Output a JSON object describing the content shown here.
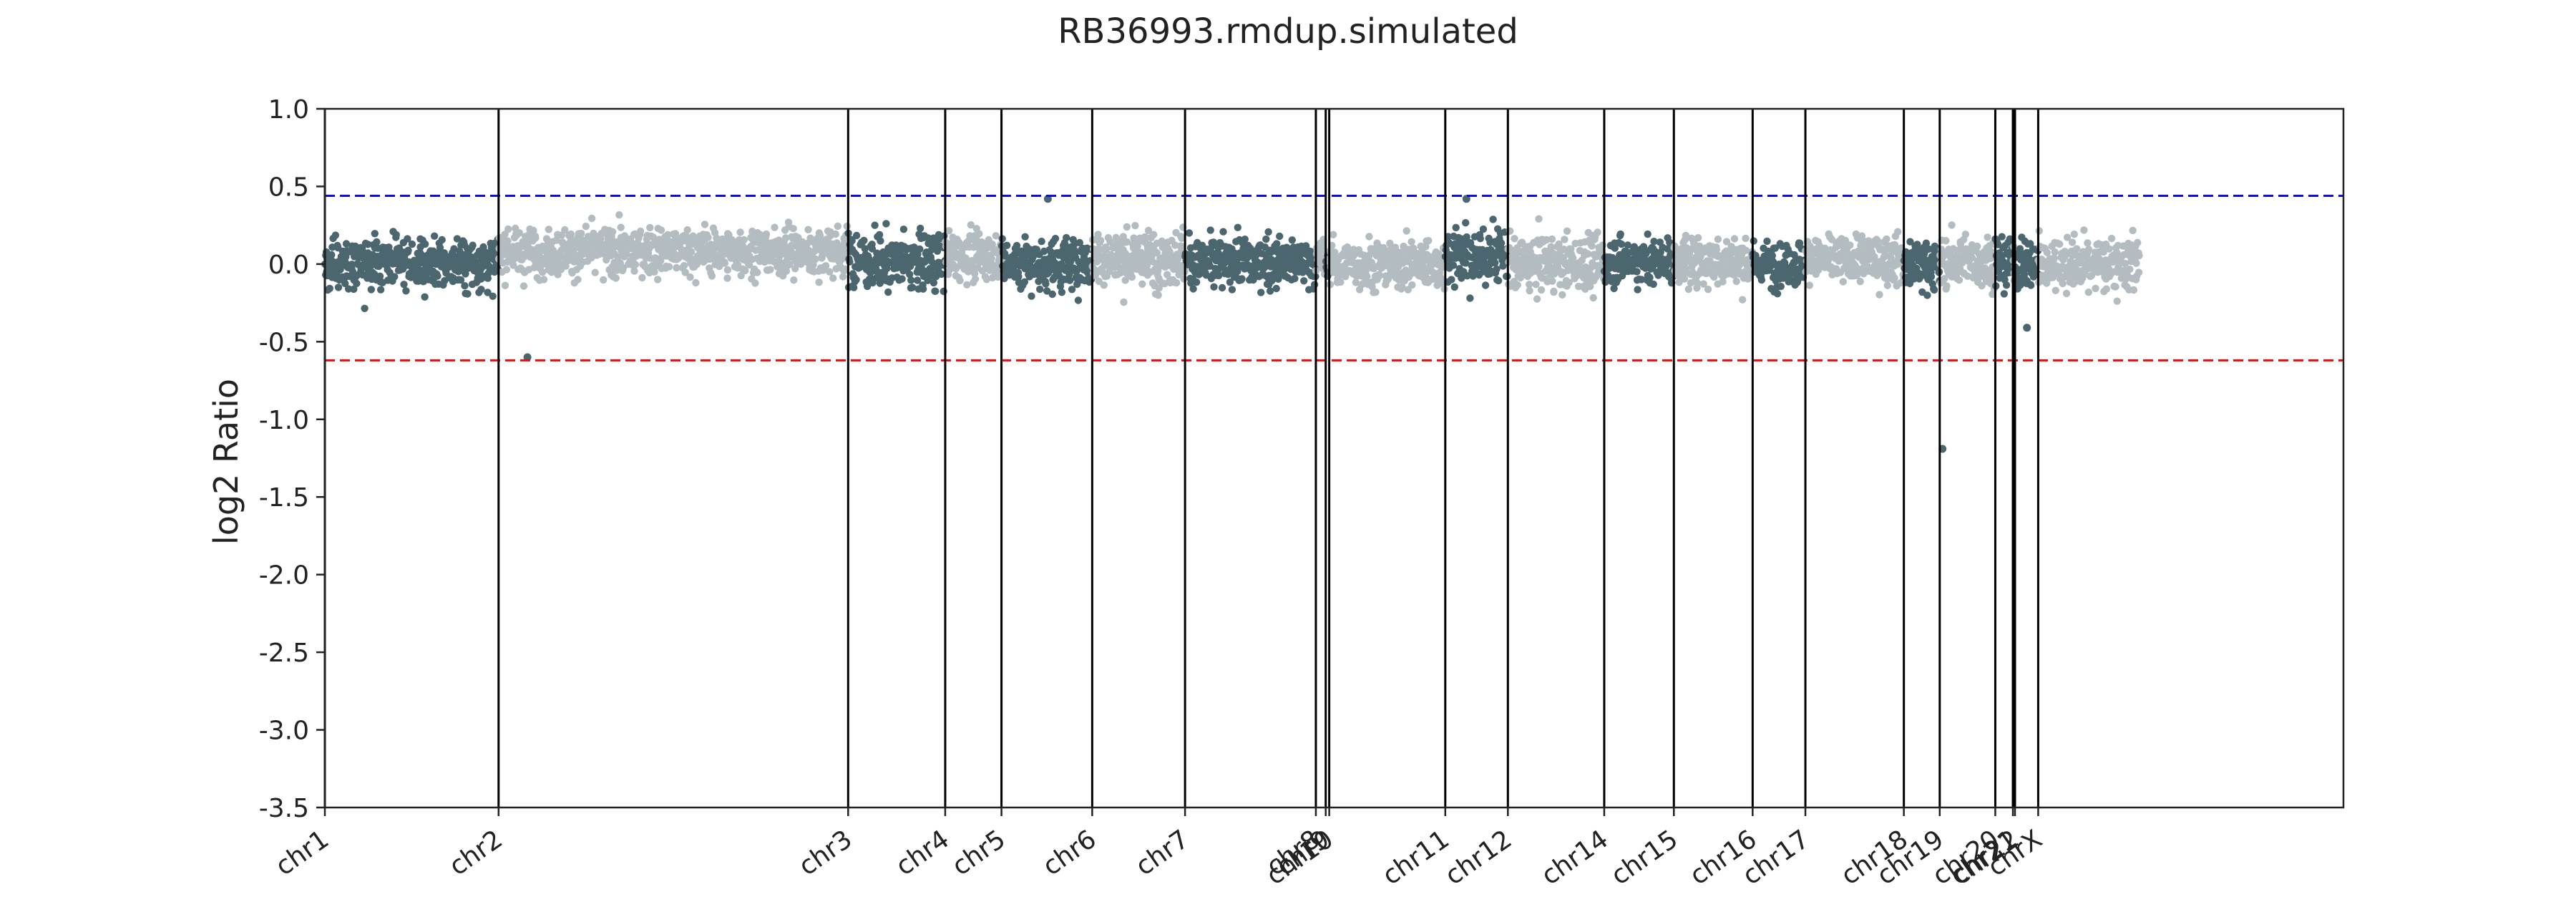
{
  "chart_data": {
    "type": "scatter",
    "title": "RB36993.rmdup.simulated",
    "xlabel": "",
    "ylabel": "log2 Ratio",
    "ylim": [
      -3.5,
      1.0
    ],
    "yticks": [
      "1.0",
      "0.5",
      "0.0",
      "-0.5",
      "-1.0",
      "-1.5",
      "-2.0",
      "-2.5",
      "-3.0",
      "-3.5"
    ],
    "thresholds": [
      {
        "value": 0.44,
        "color": "#1010cc",
        "style": "dashed"
      },
      {
        "value": -0.62,
        "color": "#dd1111",
        "style": "dashed"
      }
    ],
    "colors": {
      "dark": "#4c6670",
      "light": "#b3bdc1",
      "boundary": "#000000"
    },
    "grid": false,
    "chromosomes": [
      {
        "label": "chr1",
        "start": 0,
        "end": 247,
        "mean": 0.0,
        "sd": 0.085,
        "shade": "dark"
      },
      {
        "label": "chr2",
        "start": 247,
        "end": 744,
        "mean": 0.08,
        "sd": 0.075,
        "shade": "light"
      },
      {
        "label": "chr3",
        "start": 744,
        "end": 882,
        "mean": 0.02,
        "sd": 0.09,
        "shade": "dark"
      },
      {
        "label": "chr4",
        "start": 882,
        "end": 962,
        "mean": 0.05,
        "sd": 0.07,
        "shade": "light"
      },
      {
        "label": "chr5",
        "start": 962,
        "end": 1091,
        "mean": 0.0,
        "sd": 0.085,
        "shade": "dark"
      },
      {
        "label": "chr6",
        "start": 1091,
        "end": 1223,
        "mean": 0.04,
        "sd": 0.09,
        "shade": "light"
      },
      {
        "label": "chr7",
        "start": 1223,
        "end": 1409,
        "mean": 0.01,
        "sd": 0.075,
        "shade": "dark"
      },
      {
        "label": "chr8",
        "start": 1409,
        "end": 1423,
        "mean": 0.02,
        "sd": 0.07,
        "shade": "light"
      },
      {
        "label": "chr9",
        "start": 1423,
        "end": 1428,
        "mean": 0.0,
        "sd": 0.07,
        "shade": "dark"
      },
      {
        "label": "chr10",
        "start": 1428,
        "end": 1593,
        "mean": 0.0,
        "sd": 0.08,
        "shade": "light"
      },
      {
        "label": "chr11",
        "start": 1593,
        "end": 1682,
        "mean": 0.05,
        "sd": 0.09,
        "shade": "dark"
      },
      {
        "label": "chr12",
        "start": 1682,
        "end": 1819,
        "mean": 0.0,
        "sd": 0.085,
        "shade": "light"
      },
      {
        "label": "chr14",
        "start": 1819,
        "end": 1918,
        "mean": 0.02,
        "sd": 0.075,
        "shade": "dark"
      },
      {
        "label": "chr15",
        "start": 1918,
        "end": 2030,
        "mean": 0.02,
        "sd": 0.08,
        "shade": "light"
      },
      {
        "label": "chr16",
        "start": 2030,
        "end": 2105,
        "mean": 0.0,
        "sd": 0.07,
        "shade": "dark"
      },
      {
        "label": "chr17",
        "start": 2105,
        "end": 2245,
        "mean": 0.03,
        "sd": 0.075,
        "shade": "light"
      },
      {
        "label": "chr18",
        "start": 2245,
        "end": 2296,
        "mean": 0.0,
        "sd": 0.085,
        "shade": "dark"
      },
      {
        "label": "chr19",
        "start": 2296,
        "end": 2375,
        "mean": 0.02,
        "sd": 0.08,
        "shade": "light"
      },
      {
        "label": "chr20",
        "start": 2375,
        "end": 2400,
        "mean": 0.0,
        "sd": 0.08,
        "shade": "dark"
      },
      {
        "label": "chr21",
        "start": 2400,
        "end": 2403,
        "mean": 0.0,
        "sd": 0.07,
        "shade": "light"
      },
      {
        "label": "chr22",
        "start": 2403,
        "end": 2436,
        "mean": 0.0,
        "sd": 0.09,
        "shade": "dark"
      },
      {
        "label": "chrX",
        "start": 2436,
        "end": 2580,
        "mean": 0.0,
        "sd": 0.085,
        "shade": "light"
      }
    ],
    "outliers": [
      {
        "pos": 2300,
        "value": -1.19
      },
      {
        "pos": 2420,
        "value": -0.41
      },
      {
        "pos": 288,
        "value": -0.6
      },
      {
        "pos": 1028,
        "value": 0.42
      },
      {
        "pos": 1623,
        "value": 0.42
      }
    ],
    "genome_length": 2870
  }
}
